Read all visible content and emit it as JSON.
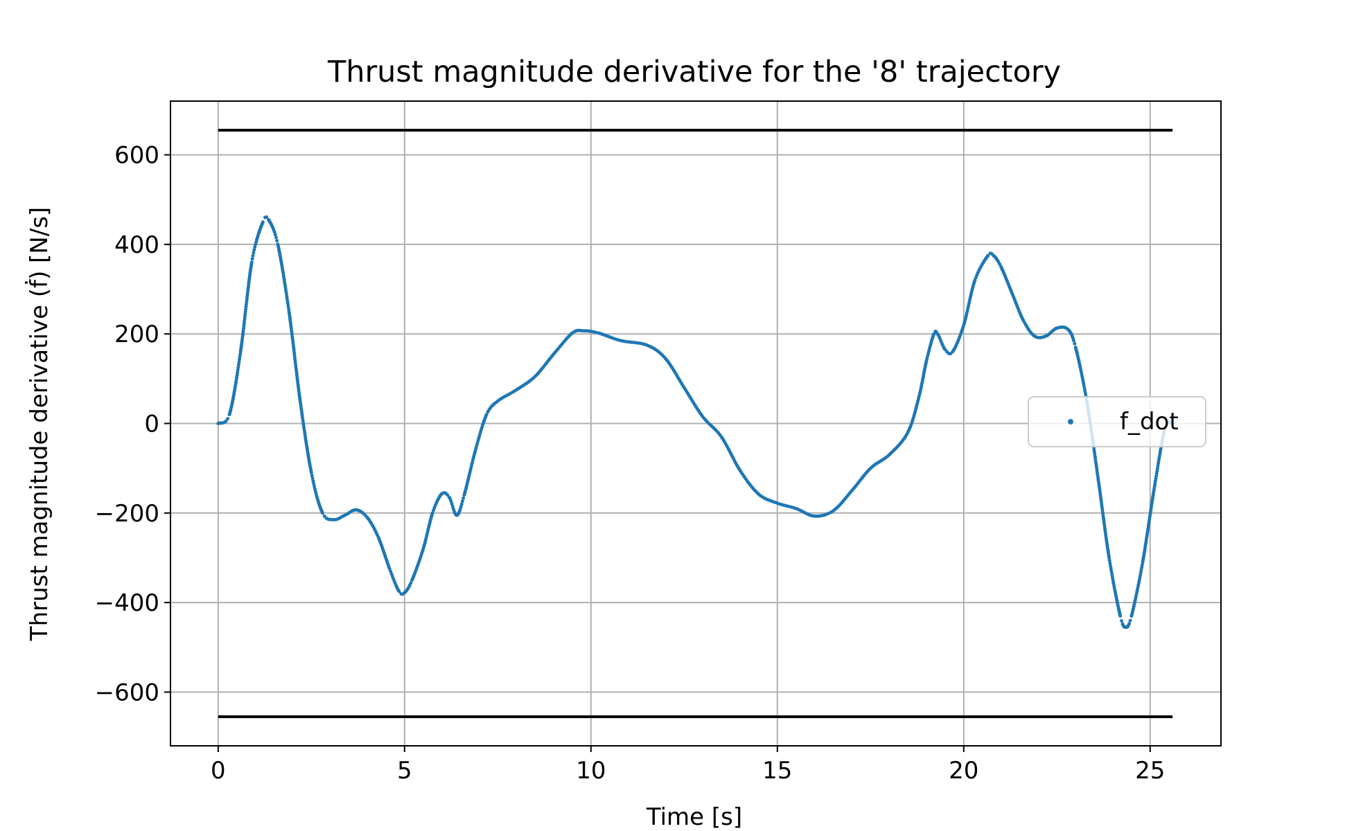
{
  "chart_data": {
    "type": "scatter",
    "title": "Thrust magnitude derivative for the '8' trajectory",
    "xlabel": "Time [s]",
    "ylabel": "Thrust magnitude derivative (ḟ) [N/s]",
    "xlim": [
      -1.28,
      26.9
    ],
    "ylim": [
      -720,
      720
    ],
    "xticks": [
      0,
      5,
      10,
      15,
      20,
      25
    ],
    "yticks": [
      -600,
      -400,
      -200,
      0,
      200,
      400,
      600
    ],
    "xtick_labels": [
      "0",
      "5",
      "10",
      "15",
      "20",
      "25"
    ],
    "ytick_labels": [
      "−600",
      "−400",
      "−200",
      "0",
      "200",
      "400",
      "600"
    ],
    "grid": true,
    "legend": {
      "placement": "center-right",
      "entries": [
        "f_dot"
      ]
    },
    "colors": {
      "series": "#1f77b4",
      "bounds": "#000000",
      "grid": "#b0b0b0"
    },
    "bounds": {
      "upper": 655,
      "lower": -655,
      "x_range": [
        0,
        25.6
      ]
    },
    "series": [
      {
        "name": "f_dot",
        "marker_size": 4,
        "keypoints": [
          [
            0,
            0
          ],
          [
            0.3,
            20
          ],
          [
            0.6,
            160
          ],
          [
            0.9,
            360
          ],
          [
            1.2,
            450
          ],
          [
            1.35,
            455
          ],
          [
            1.6,
            400
          ],
          [
            1.9,
            250
          ],
          [
            2.2,
            50
          ],
          [
            2.5,
            -110
          ],
          [
            2.8,
            -200
          ],
          [
            3.1,
            -215
          ],
          [
            3.4,
            -205
          ],
          [
            3.7,
            -193
          ],
          [
            4.0,
            -210
          ],
          [
            4.3,
            -255
          ],
          [
            4.6,
            -325
          ],
          [
            4.85,
            -375
          ],
          [
            5.0,
            -378
          ],
          [
            5.2,
            -350
          ],
          [
            5.5,
            -280
          ],
          [
            5.75,
            -200
          ],
          [
            6.0,
            -157
          ],
          [
            6.2,
            -165
          ],
          [
            6.4,
            -205
          ],
          [
            6.6,
            -160
          ],
          [
            6.9,
            -60
          ],
          [
            7.2,
            20
          ],
          [
            7.5,
            50
          ],
          [
            8.0,
            75
          ],
          [
            8.5,
            105
          ],
          [
            9.0,
            155
          ],
          [
            9.5,
            202
          ],
          [
            9.8,
            207
          ],
          [
            10.2,
            202
          ],
          [
            10.8,
            185
          ],
          [
            11.5,
            175
          ],
          [
            12.0,
            145
          ],
          [
            12.5,
            80
          ],
          [
            13.0,
            15
          ],
          [
            13.5,
            -30
          ],
          [
            14.0,
            -105
          ],
          [
            14.5,
            -158
          ],
          [
            15.0,
            -178
          ],
          [
            15.5,
            -190
          ],
          [
            16.0,
            -207
          ],
          [
            16.5,
            -195
          ],
          [
            17.0,
            -150
          ],
          [
            17.5,
            -100
          ],
          [
            18.0,
            -70
          ],
          [
            18.5,
            -20
          ],
          [
            18.8,
            60
          ],
          [
            19.0,
            140
          ],
          [
            19.2,
            200
          ],
          [
            19.3,
            200
          ],
          [
            19.5,
            165
          ],
          [
            19.7,
            160
          ],
          [
            20.0,
            220
          ],
          [
            20.3,
            320
          ],
          [
            20.65,
            375
          ],
          [
            20.8,
            375
          ],
          [
            21.0,
            350
          ],
          [
            21.3,
            290
          ],
          [
            21.6,
            230
          ],
          [
            21.9,
            195
          ],
          [
            22.2,
            195
          ],
          [
            22.5,
            213
          ],
          [
            22.8,
            210
          ],
          [
            23.0,
            170
          ],
          [
            23.3,
            50
          ],
          [
            23.6,
            -120
          ],
          [
            23.9,
            -300
          ],
          [
            24.2,
            -430
          ],
          [
            24.35,
            -455
          ],
          [
            24.5,
            -430
          ],
          [
            24.8,
            -310
          ],
          [
            25.1,
            -150
          ],
          [
            25.4,
            -10
          ],
          [
            25.6,
            0
          ]
        ]
      }
    ]
  }
}
